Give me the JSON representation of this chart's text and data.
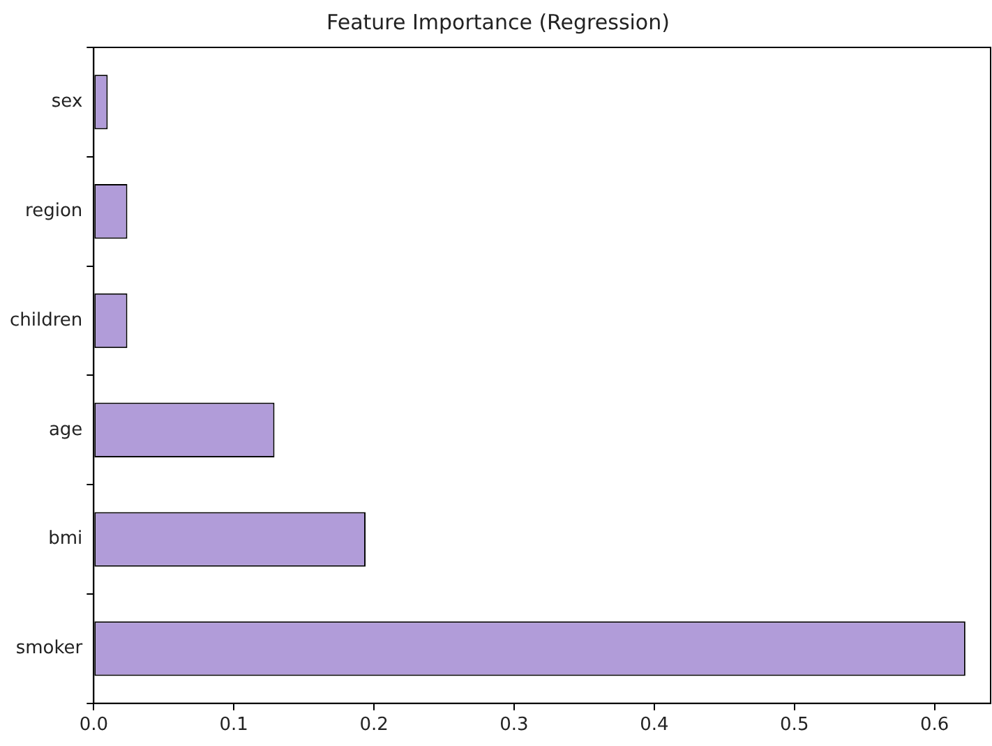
{
  "chart_data": {
    "type": "bar",
    "orientation": "horizontal",
    "title": "Feature Importance (Regression)",
    "categories": [
      "sex",
      "region",
      "children",
      "age",
      "bmi",
      "smoker"
    ],
    "values": [
      0.01,
      0.024,
      0.024,
      0.129,
      0.194,
      0.622
    ],
    "color": "#b19cd9",
    "xlim": [
      0,
      0.64
    ],
    "xticks": [
      {
        "value": 0,
        "label": "0.0"
      },
      {
        "value": 0.1,
        "label": "0.1"
      },
      {
        "value": 0.2,
        "label": "0.2"
      },
      {
        "value": 0.3,
        "label": "0.3"
      },
      {
        "value": 0.4,
        "label": "0.4"
      },
      {
        "value": 0.5,
        "label": "0.5"
      },
      {
        "value": 0.6,
        "label": "0.6"
      }
    ],
    "grid": false,
    "legend": false
  }
}
